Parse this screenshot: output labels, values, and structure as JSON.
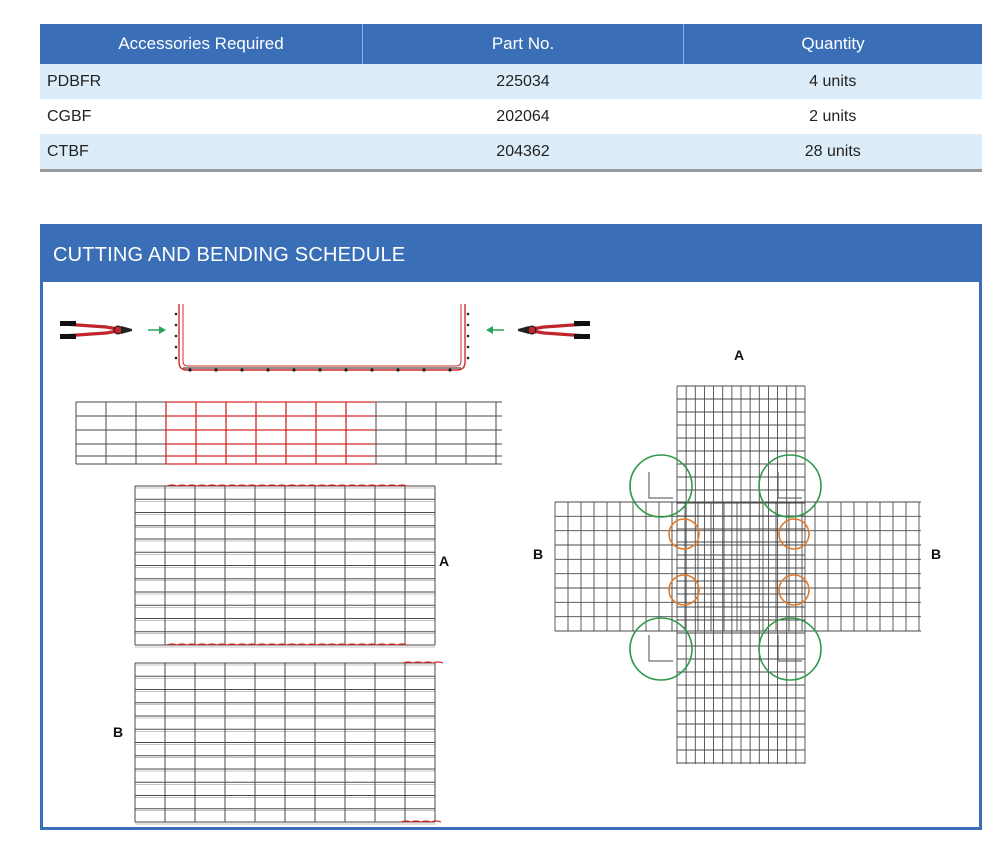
{
  "accessories": {
    "headers": [
      "Accessories Required",
      "Part No.",
      "Quantity"
    ],
    "rows": [
      {
        "name": "PDBFR",
        "part_no": "225034",
        "quantity": "4 units"
      },
      {
        "name": "CGBF",
        "part_no": "202064",
        "quantity": "2 units"
      },
      {
        "name": "CTBF",
        "part_no": "204362",
        "quantity": "28 units"
      }
    ]
  },
  "schedule": {
    "title": "CUTTING AND BENDING SCHEDULE",
    "labels": {
      "panel_a": "A",
      "panel_b": "B",
      "cross_top": "A",
      "cross_left": "B",
      "cross_right": "B"
    },
    "colors": {
      "header_blue": "#3a6fb8",
      "cut_red": "#d42a2a",
      "arrow_green": "#27a35a",
      "circle_green": "#2e9a4a",
      "circle_orange": "#e07a2a"
    }
  }
}
